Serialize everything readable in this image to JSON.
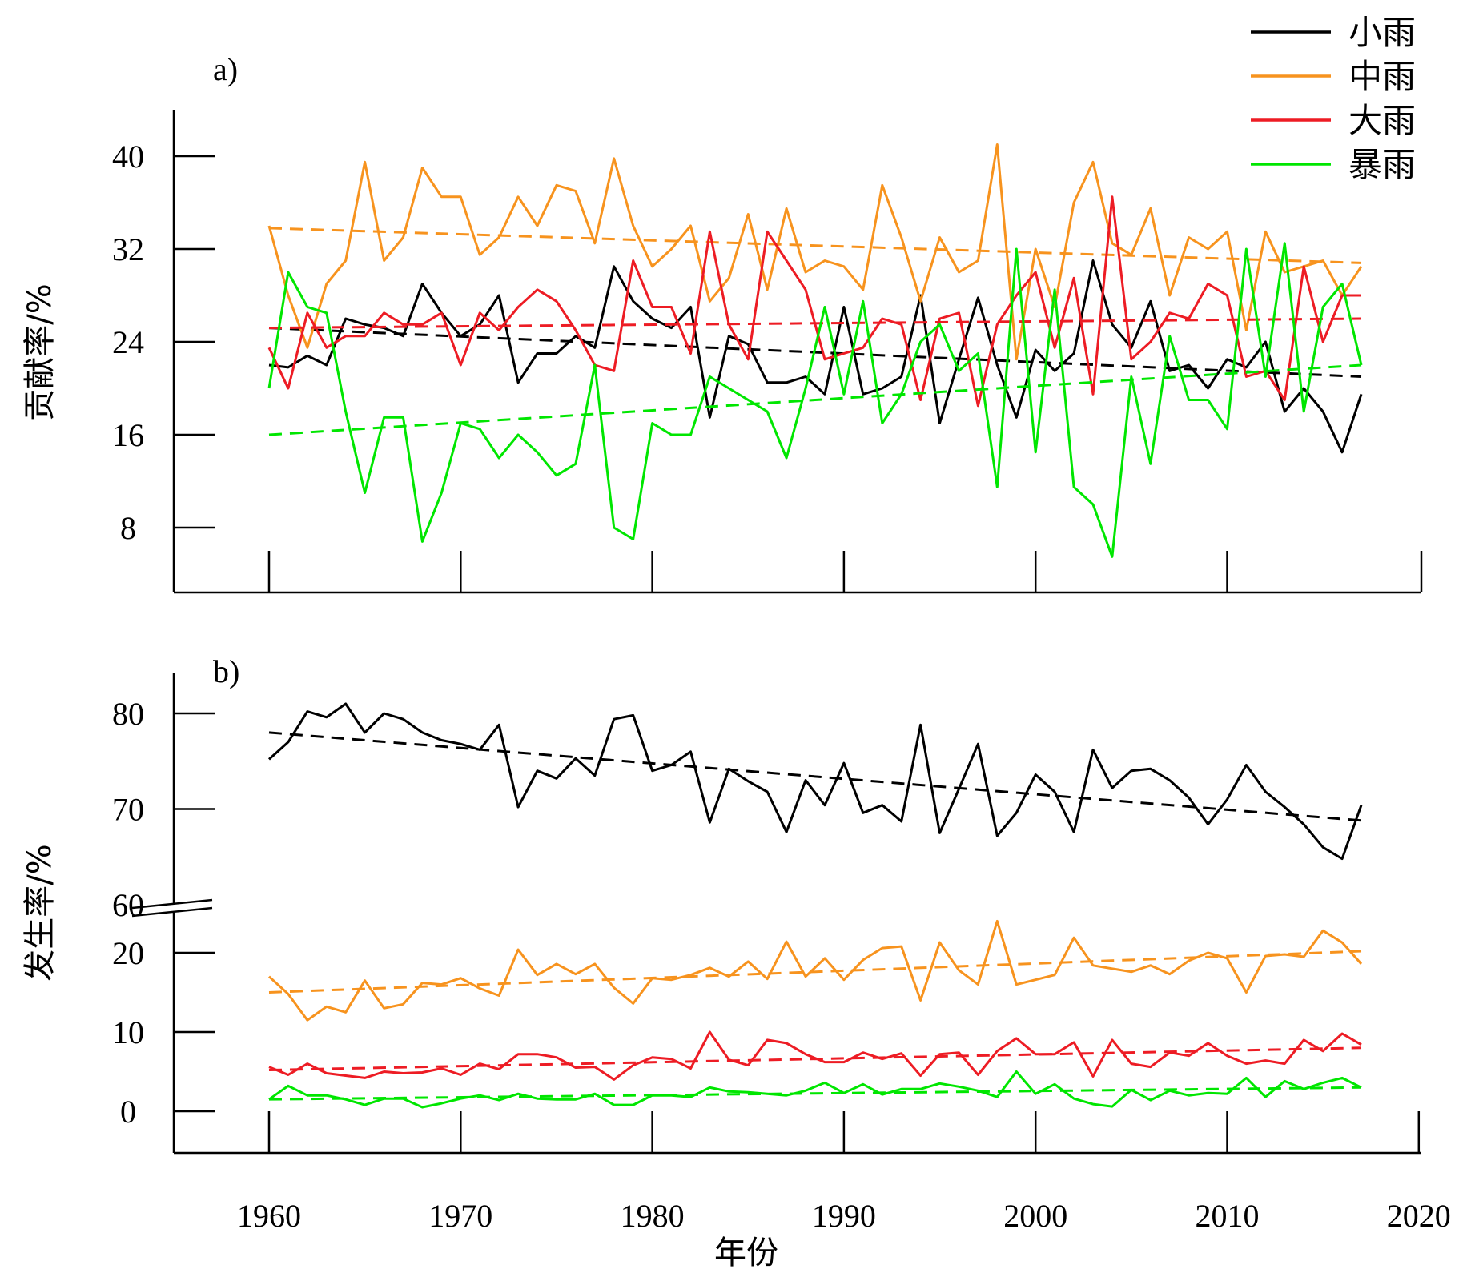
{
  "chart_data": [
    {
      "type": "line",
      "panel_label": "a)",
      "ylabel": "贡献率/%",
      "xlim": [
        1955,
        2020
      ],
      "ylim": [
        3,
        44
      ],
      "yticks": [
        8,
        16,
        24,
        32,
        40
      ],
      "xticks": [
        1960,
        1970,
        1980,
        1990,
        2000,
        2010
      ],
      "legend_position": "top-right",
      "x": [
        1960,
        1961,
        1962,
        1963,
        1964,
        1965,
        1966,
        1967,
        1968,
        1969,
        1970,
        1971,
        1972,
        1973,
        1974,
        1975,
        1976,
        1977,
        1978,
        1979,
        1980,
        1981,
        1982,
        1983,
        1984,
        1985,
        1986,
        1987,
        1988,
        1989,
        1990,
        1991,
        1992,
        1993,
        1994,
        1995,
        1996,
        1997,
        1998,
        1999,
        2000,
        2001,
        2002,
        2003,
        2004,
        2005,
        2006,
        2007,
        2008,
        2009,
        2010,
        2011,
        2012,
        2013,
        2014,
        2015,
        2016,
        2017
      ],
      "series": [
        {
          "name": "小雨",
          "color": "#000000",
          "values": [
            22.0,
            21.8,
            22.8,
            22.0,
            26.0,
            25.5,
            25.2,
            24.5,
            29.0,
            26.5,
            24.5,
            25.5,
            28.0,
            20.5,
            23.0,
            23.0,
            24.5,
            23.5,
            30.5,
            27.5,
            26.0,
            25.2,
            27.0,
            17.5,
            24.5,
            23.8,
            20.5,
            20.5,
            21.0,
            19.5,
            27.0,
            19.5,
            20.0,
            21.0,
            28.0,
            17.0,
            22.5,
            27.8,
            22.0,
            17.5,
            23.3,
            21.5,
            23.0,
            31.0,
            25.5,
            23.5,
            27.5,
            21.5,
            22.0,
            20.0,
            22.5,
            21.8,
            24.0,
            18.0,
            20.0,
            18.0,
            14.5,
            19.5
          ],
          "trend": [
            25.2,
            21.0
          ]
        },
        {
          "name": "中雨",
          "color": "#f7931e",
          "values": [
            34.0,
            28.0,
            23.5,
            29.0,
            31.0,
            39.5,
            31.0,
            33.0,
            39.0,
            36.5,
            36.5,
            31.5,
            33.0,
            36.5,
            34.0,
            37.5,
            37.0,
            32.5,
            39.8,
            34.0,
            30.5,
            32.0,
            34.0,
            27.5,
            29.5,
            35.0,
            28.5,
            35.5,
            30.0,
            31.0,
            30.5,
            28.5,
            37.5,
            33.0,
            27.5,
            33.0,
            30.0,
            31.0,
            41.0,
            22.5,
            32.0,
            27.0,
            36.0,
            39.5,
            32.5,
            31.5,
            35.5,
            28.0,
            33.0,
            32.0,
            33.5,
            25.0,
            33.5,
            30.0,
            30.5,
            31.0,
            28.0,
            30.5
          ],
          "trend": [
            33.8,
            30.8
          ]
        },
        {
          "name": "大雨",
          "color": "#ed1c24",
          "values": [
            23.5,
            20.0,
            26.5,
            23.5,
            24.5,
            24.5,
            26.5,
            25.5,
            25.5,
            26.5,
            22.0,
            26.5,
            25.0,
            27.0,
            28.5,
            27.5,
            25.0,
            22.0,
            21.5,
            31.0,
            27.0,
            27.0,
            23.0,
            33.5,
            25.5,
            22.5,
            33.5,
            31.0,
            28.5,
            22.5,
            23.0,
            23.5,
            26.0,
            25.5,
            19.0,
            26.0,
            26.5,
            18.5,
            25.5,
            28.0,
            30.0,
            23.5,
            29.5,
            19.5,
            36.5,
            22.5,
            24.0,
            26.5,
            26.0,
            29.0,
            28.0,
            21.0,
            21.5,
            19.0,
            30.5,
            24.0,
            28.0,
            28.0
          ],
          "trend": [
            25.2,
            26.0
          ]
        },
        {
          "name": "暴雨",
          "color": "#00e600",
          "values": [
            20.0,
            30.0,
            27.0,
            26.5,
            18.0,
            11.0,
            17.5,
            17.5,
            6.8,
            11.0,
            17.0,
            16.5,
            14.0,
            16.0,
            14.5,
            12.5,
            13.5,
            22.0,
            8.0,
            7.0,
            17.0,
            16.0,
            16.0,
            21.0,
            20.0,
            19.0,
            18.0,
            14.0,
            20.0,
            27.0,
            19.5,
            27.5,
            17.0,
            19.5,
            24.0,
            25.5,
            21.5,
            23.0,
            11.5,
            32.0,
            14.5,
            28.5,
            11.5,
            10.0,
            5.5,
            21.0,
            13.5,
            24.5,
            19.0,
            19.0,
            16.5,
            32.0,
            21.0,
            32.5,
            18.0,
            27.0,
            29.0,
            22.0
          ],
          "trend": [
            16.0,
            22.0
          ]
        }
      ]
    },
    {
      "type": "line",
      "panel_label": "b)",
      "ylabel": "发生率/%",
      "xlabel": "年份",
      "xlim": [
        1955,
        2020
      ],
      "axis_break": "60",
      "ylim_lower": [
        -5,
        25
      ],
      "ylim_upper": [
        60,
        85
      ],
      "yticks_lower": [
        0,
        10,
        20
      ],
      "yticks_upper": [
        60,
        70,
        80
      ],
      "xticks": [
        1960,
        1970,
        1980,
        1990,
        2000,
        2010,
        2020
      ],
      "x": [
        1960,
        1961,
        1962,
        1963,
        1964,
        1965,
        1966,
        1967,
        1968,
        1969,
        1970,
        1971,
        1972,
        1973,
        1974,
        1975,
        1976,
        1977,
        1978,
        1979,
        1980,
        1981,
        1982,
        1983,
        1984,
        1985,
        1986,
        1987,
        1988,
        1989,
        1990,
        1991,
        1992,
        1993,
        1994,
        1995,
        1996,
        1997,
        1998,
        1999,
        2000,
        2001,
        2002,
        2003,
        2004,
        2005,
        2006,
        2007,
        2008,
        2009,
        2010,
        2011,
        2012,
        2013,
        2014,
        2015,
        2016,
        2017
      ],
      "series": [
        {
          "name": "小雨",
          "color": "#000000",
          "values": [
            75.2,
            77.0,
            80.2,
            79.6,
            81.0,
            78.0,
            80.0,
            79.4,
            78.0,
            77.2,
            76.8,
            76.2,
            78.8,
            70.2,
            74.0,
            73.2,
            75.3,
            73.5,
            79.4,
            79.8,
            74.0,
            74.6,
            76.0,
            68.6,
            74.2,
            72.9,
            71.8,
            67.6,
            73.0,
            70.4,
            74.8,
            69.6,
            70.4,
            68.7,
            78.8,
            67.5,
            72.1,
            76.8,
            67.2,
            69.6,
            73.6,
            71.8,
            67.6,
            76.2,
            72.2,
            74.0,
            74.2,
            73.0,
            71.2,
            68.4,
            71.0,
            74.6,
            71.8,
            70.2,
            68.4,
            66.0,
            64.8,
            70.4
          ],
          "trend": [
            78.0,
            68.8
          ]
        },
        {
          "name": "中雨",
          "color": "#f7931e",
          "values": [
            17.0,
            14.8,
            11.5,
            13.2,
            12.5,
            16.5,
            13.0,
            13.5,
            16.2,
            16.0,
            16.8,
            15.5,
            14.6,
            20.4,
            17.2,
            18.6,
            17.3,
            18.6,
            15.6,
            13.6,
            16.8,
            16.6,
            17.2,
            18.1,
            17.0,
            18.9,
            16.7,
            21.4,
            17.0,
            19.3,
            16.6,
            19.1,
            20.6,
            20.8,
            14.0,
            21.3,
            17.8,
            16.0,
            24.0,
            16.0,
            16.6,
            17.2,
            21.9,
            18.4,
            18.0,
            17.6,
            18.4,
            17.3,
            19.0,
            20.0,
            19.3,
            15.0,
            19.6,
            19.8,
            19.5,
            22.8,
            21.3,
            18.6
          ],
          "trend": [
            15.0,
            20.2
          ]
        },
        {
          "name": "大雨",
          "color": "#ed1c24",
          "values": [
            5.6,
            4.6,
            6.0,
            4.8,
            4.5,
            4.2,
            5.0,
            4.8,
            4.9,
            5.4,
            4.6,
            6.0,
            5.3,
            7.2,
            7.2,
            6.8,
            5.5,
            5.6,
            4.0,
            5.8,
            6.8,
            6.6,
            5.4,
            10.0,
            6.5,
            5.8,
            9.0,
            8.6,
            7.2,
            6.2,
            6.2,
            7.4,
            6.6,
            7.3,
            4.5,
            7.2,
            7.4,
            4.6,
            7.6,
            9.2,
            7.2,
            7.2,
            8.7,
            4.4,
            9.0,
            6.0,
            5.6,
            7.4,
            7.0,
            8.6,
            7.0,
            6.0,
            6.4,
            6.0,
            9.0,
            7.6,
            9.8,
            8.4
          ],
          "trend": [
            5.2,
            8.0
          ]
        },
        {
          "name": "暴雨",
          "color": "#00e600",
          "values": [
            1.5,
            3.2,
            2.0,
            2.0,
            1.5,
            0.8,
            1.6,
            1.6,
            0.5,
            1.0,
            1.6,
            2.0,
            1.4,
            2.2,
            1.6,
            1.5,
            1.5,
            2.2,
            0.8,
            0.8,
            2.0,
            2.0,
            1.8,
            3.0,
            2.5,
            2.4,
            2.2,
            2.0,
            2.6,
            3.6,
            2.3,
            3.4,
            2.1,
            2.8,
            2.8,
            3.5,
            3.1,
            2.6,
            1.8,
            5.0,
            2.2,
            3.4,
            1.6,
            0.9,
            0.6,
            2.7,
            1.4,
            2.6,
            2.0,
            2.3,
            2.2,
            4.2,
            1.8,
            3.8,
            2.8,
            3.6,
            4.2,
            3.0
          ],
          "trend": [
            1.5,
            3.0
          ]
        }
      ]
    }
  ]
}
